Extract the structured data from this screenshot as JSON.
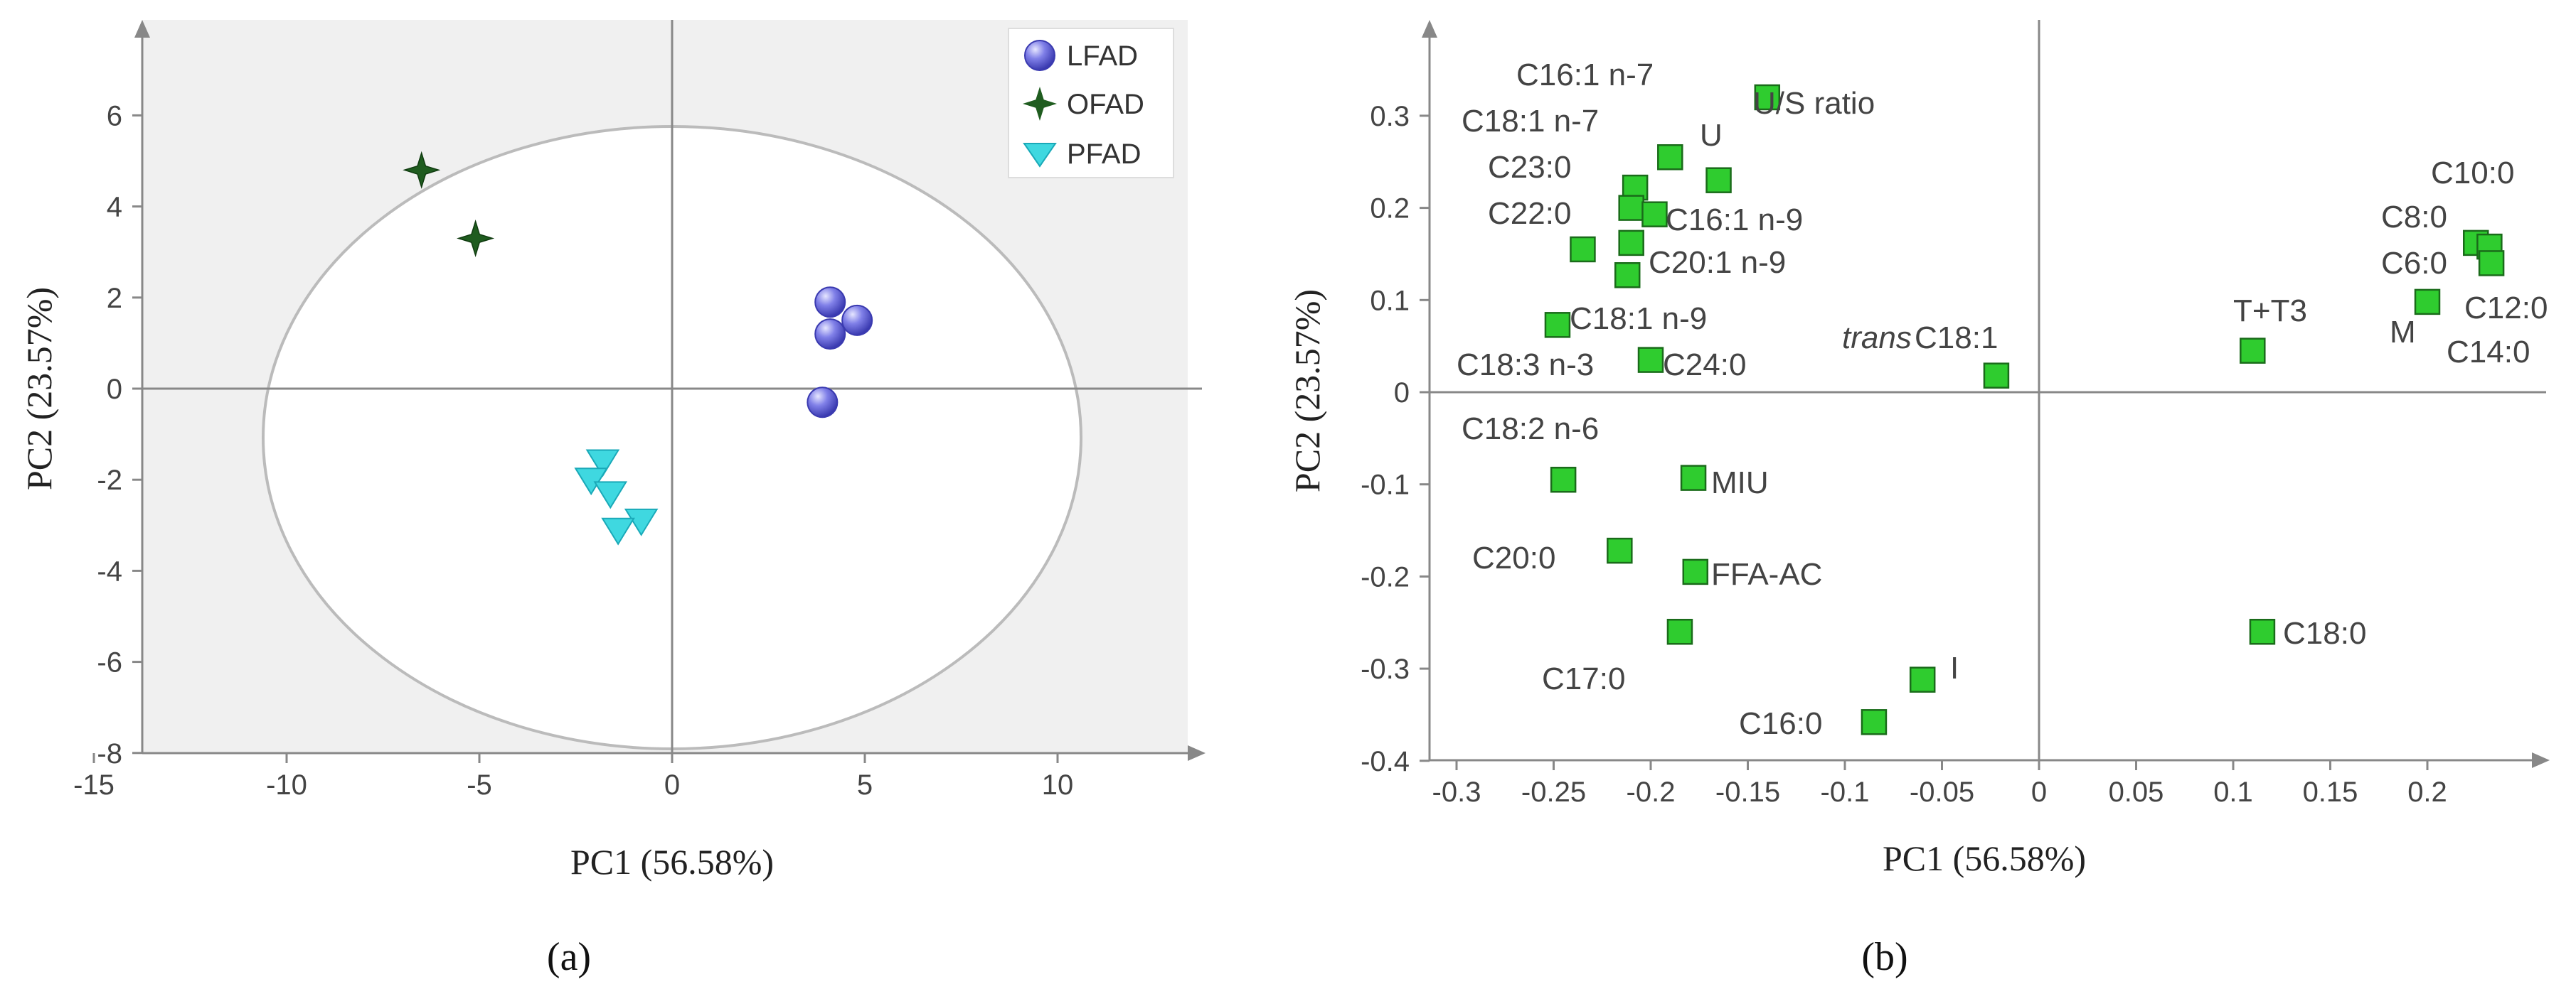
{
  "chart_data": [
    {
      "type": "scatter",
      "panel_caption": "(a)",
      "xlabel": "PC1 (56.58%)",
      "ylabel": "PC2 (23.57%)",
      "xlim": [
        -15,
        15
      ],
      "ylim": [
        -8,
        8
      ],
      "xticks": [
        "-15",
        "-10",
        "-5",
        "0",
        "5",
        "10"
      ],
      "yticks": [
        "6",
        "4",
        "2",
        "0",
        "-2",
        "-4",
        "-6",
        "-8"
      ],
      "legend_position": "top-right",
      "series": [
        {
          "name": "LFAD",
          "marker": "circle",
          "color": "#6f6fe0",
          "points": [
            [
              4.1,
              1.9
            ],
            [
              4.1,
              1.2
            ],
            [
              4.8,
              1.5
            ],
            [
              3.9,
              -0.3
            ]
          ]
        },
        {
          "name": "OFAD",
          "marker": "star",
          "color": "#1f5c1f",
          "points": [
            [
              -6.5,
              4.8
            ],
            [
              -5.1,
              3.3
            ]
          ]
        },
        {
          "name": "PFAD",
          "marker": "triangle-down",
          "color": "#3fd8e0",
          "points": [
            [
              -1.8,
              -1.6
            ],
            [
              -2.1,
              -2.0
            ],
            [
              -1.6,
              -2.3
            ],
            [
              -0.8,
              -2.9
            ],
            [
              -1.4,
              -3.1
            ]
          ]
        }
      ]
    },
    {
      "type": "scatter",
      "panel_caption": "(b)",
      "xlabel": "PC1 (56.58%)",
      "ylabel": "PC2 (23.57%)",
      "xlim": [
        -0.3,
        0.24
      ],
      "ylim": [
        -0.4,
        0.38
      ],
      "xticks": [
        "-0.3",
        "-0.25",
        "-0.2",
        "-0.15",
        "-0.1",
        "-0.05",
        "0",
        "0.05",
        "0.1",
        "0.15",
        "0.2"
      ],
      "yticks": [
        "0.3",
        "0.2",
        "0.1",
        "0",
        "-0.1",
        "-0.2",
        "-0.3",
        "-0.4"
      ],
      "marker_color": "#2fcc2f",
      "points": [
        {
          "x": -0.14,
          "y": 0.32
        },
        {
          "x": -0.19,
          "y": 0.255
        },
        {
          "x": -0.165,
          "y": 0.23
        },
        {
          "x": -0.208,
          "y": 0.222
        },
        {
          "x": -0.21,
          "y": 0.2
        },
        {
          "x": -0.198,
          "y": 0.193
        },
        {
          "x": -0.21,
          "y": 0.162
        },
        {
          "x": -0.235,
          "y": 0.155
        },
        {
          "x": -0.212,
          "y": 0.127
        },
        {
          "x": -0.248,
          "y": 0.073
        },
        {
          "x": -0.2,
          "y": 0.035
        },
        {
          "x": -0.022,
          "y": 0.018
        },
        {
          "x": -0.245,
          "y": -0.095
        },
        {
          "x": -0.178,
          "y": -0.093
        },
        {
          "x": -0.216,
          "y": -0.172
        },
        {
          "x": -0.177,
          "y": -0.195
        },
        {
          "x": -0.185,
          "y": -0.26
        },
        {
          "x": -0.06,
          "y": -0.312
        },
        {
          "x": -0.085,
          "y": -0.358
        },
        {
          "x": 0.11,
          "y": 0.045
        },
        {
          "x": 0.115,
          "y": -0.26
        },
        {
          "x": 0.225,
          "y": 0.162
        },
        {
          "x": 0.232,
          "y": 0.158
        },
        {
          "x": 0.233,
          "y": 0.14
        },
        {
          "x": 0.2,
          "y": 0.098
        }
      ],
      "labels": [
        {
          "text": "U/S ratio"
        },
        {
          "text": "C16:1 n-7"
        },
        {
          "text": "C18:1 n-7"
        },
        {
          "text": "U"
        },
        {
          "text": "C23:0"
        },
        {
          "text": "C22:0"
        },
        {
          "text": "C16:1 n-9"
        },
        {
          "text": "C20:1 n-9"
        },
        {
          "text": "C18:1 n-9"
        },
        {
          "text": "C18:3 n-3"
        },
        {
          "text": "C24:0"
        },
        {
          "text": "trans",
          "italic": true
        },
        {
          "text": "C18:1"
        },
        {
          "text": "C18:2 n-6"
        },
        {
          "text": "MIU"
        },
        {
          "text": "C20:0"
        },
        {
          "text": "FFA-AC"
        },
        {
          "text": "C17:0"
        },
        {
          "text": "I"
        },
        {
          "text": "C16:0"
        },
        {
          "text": "T+T3"
        },
        {
          "text": "C18:0"
        },
        {
          "text": "C10:0"
        },
        {
          "text": "C8:0"
        },
        {
          "text": "C6:0"
        },
        {
          "text": "C12:0"
        },
        {
          "text": "M"
        },
        {
          "text": "C14:0"
        }
      ]
    }
  ]
}
